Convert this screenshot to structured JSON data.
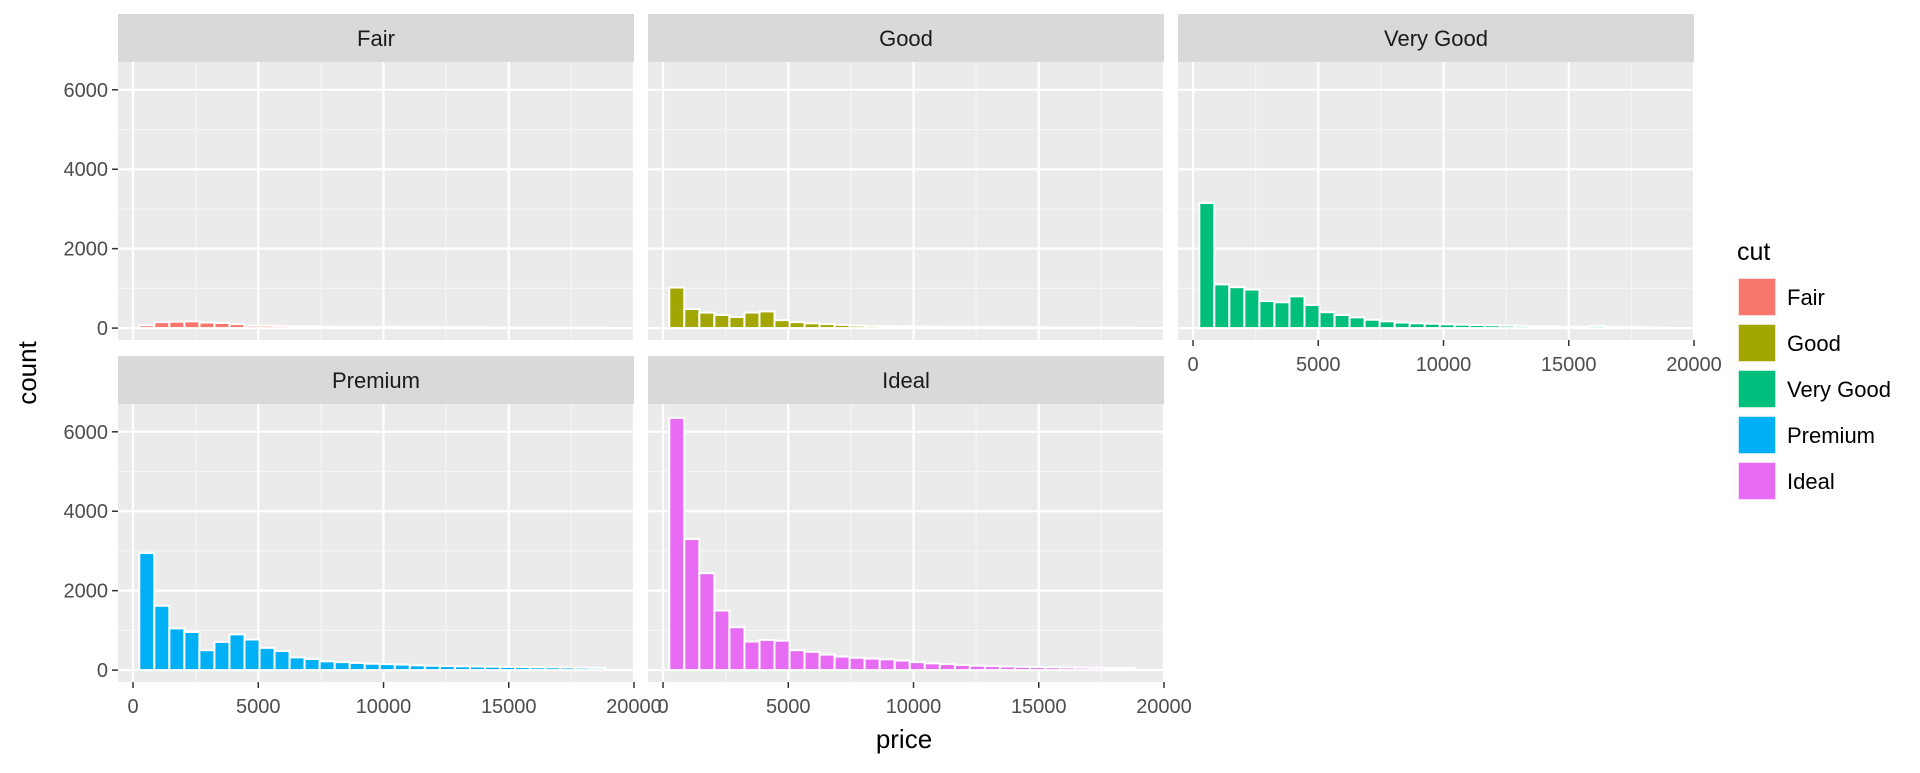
{
  "chart_data": {
    "type": "histogram",
    "facet_variable": "cut",
    "xlabel": "price",
    "ylabel": "count",
    "x_ticks": [
      0,
      5000,
      10000,
      15000,
      20000
    ],
    "x_tick_labels": [
      "0",
      "5000",
      "10000",
      "15000",
      "20000"
    ],
    "y_ticks": [
      0,
      2000,
      4000,
      6000
    ],
    "y_tick_labels": [
      "0",
      "2000",
      "4000",
      "6000"
    ],
    "xlim": [
      -600,
      20000
    ],
    "ylim": [
      -300,
      6700
    ],
    "grid": true,
    "legend": {
      "title": "cut",
      "position": "right"
    },
    "bin_centers": [
      550,
      1150,
      1750,
      2350,
      2950,
      3550,
      4150,
      4750,
      5350,
      5950,
      6550,
      7150,
      7750,
      8350,
      8950,
      9550,
      10150,
      10750,
      11350,
      11950,
      12550,
      13150,
      13750,
      14350,
      14950,
      15550,
      16150,
      16750,
      17350,
      17950,
      18550
    ],
    "bin_width": 600,
    "series": [
      {
        "name": "Fair",
        "color": "#F8766D",
        "values": [
          70,
          150,
          160,
          170,
          140,
          130,
          100,
          60,
          60,
          55,
          45,
          40,
          35,
          30,
          30,
          30,
          35,
          30,
          25,
          25,
          20,
          20,
          20,
          15,
          15,
          15,
          15,
          15,
          10,
          10,
          10
        ]
      },
      {
        "name": "Good",
        "color": "#A3A500",
        "values": [
          1020,
          480,
          390,
          330,
          280,
          390,
          420,
          200,
          150,
          120,
          100,
          80,
          60,
          55,
          50,
          45,
          40,
          35,
          30,
          30,
          25,
          25,
          20,
          20,
          20,
          15,
          15,
          15,
          15,
          10,
          10
        ]
      },
      {
        "name": "Very Good",
        "color": "#00BF7D",
        "values": [
          3150,
          1100,
          1030,
          970,
          680,
          650,
          800,
          580,
          400,
          330,
          270,
          210,
          170,
          140,
          120,
          110,
          95,
          85,
          75,
          70,
          60,
          55,
          45,
          40,
          35,
          35,
          55,
          30,
          25,
          20,
          15
        ]
      },
      {
        "name": "Premium",
        "color": "#00B0F6",
        "values": [
          2950,
          1620,
          1050,
          960,
          500,
          710,
          900,
          770,
          560,
          480,
          320,
          280,
          220,
          200,
          180,
          160,
          150,
          140,
          120,
          110,
          100,
          95,
          90,
          85,
          80,
          75,
          70,
          70,
          65,
          60,
          55
        ]
      },
      {
        "name": "Ideal",
        "color": "#E76BF3",
        "values": [
          6350,
          3300,
          2440,
          1500,
          1080,
          720,
          760,
          740,
          500,
          460,
          390,
          340,
          310,
          290,
          270,
          240,
          200,
          170,
          150,
          130,
          110,
          100,
          90,
          80,
          75,
          70,
          65,
          60,
          55,
          50,
          45
        ]
      }
    ]
  }
}
